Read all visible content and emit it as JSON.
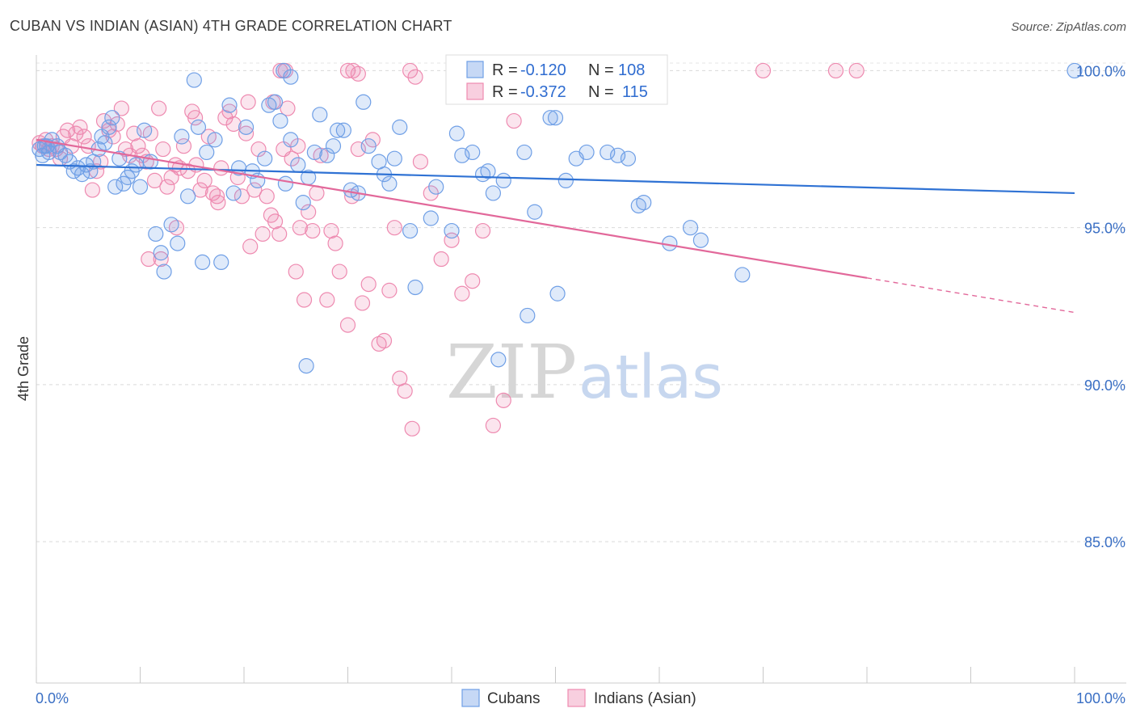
{
  "title": "CUBAN VS INDIAN (ASIAN) 4TH GRADE CORRELATION CHART",
  "source": "Source: ZipAtlas.com",
  "watermark": {
    "part1": "ZIP",
    "part2": "atlas"
  },
  "colors": {
    "blue": "#6f9fe6",
    "blue_line": "#2f72d4",
    "pink": "#ee8ab0",
    "pink_line": "#e2689a",
    "grid": "#d8d8d8",
    "axis_text": "#3a6fc4"
  },
  "legend": {
    "rows": [
      {
        "r_label": "R =",
        "r_value": "-0.120",
        "n_label": "N =",
        "n_value": "108"
      },
      {
        "r_label": "R =",
        "r_value": "-0.372",
        "n_label": "N =",
        "n_value": "115"
      }
    ]
  },
  "chart_data": {
    "type": "scatter",
    "title": "CUBAN VS INDIAN (ASIAN) 4TH GRADE CORRELATION CHART",
    "xlabel": "",
    "ylabel": "4th Grade",
    "xlim": [
      0,
      100
    ],
    "ylim": [
      80.5,
      100.5
    ],
    "x_tick_labels": [
      "0.0%",
      "100.0%"
    ],
    "y_ticks": [
      85,
      90,
      95,
      100
    ],
    "y_tick_labels": [
      "85.0%",
      "90.0%",
      "95.0%",
      "100.0%"
    ],
    "legend_position": "bottom",
    "series": [
      {
        "name": "Cubans",
        "color": "#6f9fe6",
        "trend": {
          "x_start": 0,
          "y_start": 97.0,
          "x_end": 100,
          "y_end": 96.1,
          "dashed_from": null
        },
        "points": [
          [
            0.3,
            97.5
          ],
          [
            0.6,
            97.3
          ],
          [
            0.8,
            97.6
          ],
          [
            1.0,
            97.6
          ],
          [
            1.2,
            97.4
          ],
          [
            1.5,
            97.8
          ],
          [
            2.0,
            97.6
          ],
          [
            2.3,
            97.4
          ],
          [
            2.8,
            97.3
          ],
          [
            3.2,
            97.1
          ],
          [
            3.6,
            96.8
          ],
          [
            4.0,
            96.9
          ],
          [
            4.4,
            96.7
          ],
          [
            4.8,
            97.0
          ],
          [
            5.2,
            96.8
          ],
          [
            5.5,
            97.1
          ],
          [
            6.0,
            97.5
          ],
          [
            6.3,
            97.9
          ],
          [
            6.6,
            97.7
          ],
          [
            7.0,
            98.2
          ],
          [
            7.3,
            98.5
          ],
          [
            7.6,
            96.3
          ],
          [
            8.0,
            97.2
          ],
          [
            8.4,
            96.4
          ],
          [
            8.8,
            96.6
          ],
          [
            9.2,
            96.8
          ],
          [
            9.6,
            97.0
          ],
          [
            10.0,
            96.3
          ],
          [
            10.4,
            98.1
          ],
          [
            11.0,
            97.1
          ],
          [
            11.5,
            94.8
          ],
          [
            12.0,
            94.2
          ],
          [
            12.3,
            93.6
          ],
          [
            13.0,
            95.1
          ],
          [
            13.6,
            94.5
          ],
          [
            14.0,
            97.9
          ],
          [
            14.6,
            96.0
          ],
          [
            15.2,
            99.7
          ],
          [
            15.6,
            98.2
          ],
          [
            16.0,
            93.9
          ],
          [
            16.4,
            97.4
          ],
          [
            17.2,
            97.8
          ],
          [
            17.8,
            93.9
          ],
          [
            18.6,
            98.9
          ],
          [
            19.0,
            96.1
          ],
          [
            19.5,
            96.9
          ],
          [
            20.2,
            98.2
          ],
          [
            20.8,
            96.8
          ],
          [
            21.3,
            96.5
          ],
          [
            22.0,
            97.2
          ],
          [
            22.4,
            98.9
          ],
          [
            23.0,
            99.0
          ],
          [
            23.5,
            98.4
          ],
          [
            24.0,
            96.4
          ],
          [
            24.5,
            97.8
          ],
          [
            25.2,
            97.0
          ],
          [
            25.7,
            95.8
          ],
          [
            26.2,
            96.6
          ],
          [
            26.8,
            97.4
          ],
          [
            27.3,
            98.6
          ],
          [
            28.0,
            97.3
          ],
          [
            28.6,
            97.6
          ],
          [
            29.0,
            98.1
          ],
          [
            29.6,
            98.1
          ],
          [
            30.3,
            96.2
          ],
          [
            31.0,
            96.1
          ],
          [
            32.0,
            97.6
          ],
          [
            33.0,
            97.1
          ],
          [
            33.5,
            96.7
          ],
          [
            34.0,
            96.4
          ],
          [
            34.5,
            97.2
          ],
          [
            35.0,
            98.2
          ],
          [
            36.0,
            94.9
          ],
          [
            36.5,
            93.1
          ],
          [
            38.0,
            95.3
          ],
          [
            38.5,
            96.3
          ],
          [
            40.0,
            94.9
          ],
          [
            40.5,
            98.0
          ],
          [
            41.0,
            97.3
          ],
          [
            42.0,
            97.4
          ],
          [
            43.0,
            96.7
          ],
          [
            43.5,
            96.8
          ],
          [
            44.0,
            96.1
          ],
          [
            45.0,
            96.5
          ],
          [
            47.0,
            97.4
          ],
          [
            48.0,
            95.5
          ],
          [
            49.5,
            98.5
          ],
          [
            50.0,
            98.5
          ],
          [
            51.0,
            96.5
          ],
          [
            52.0,
            97.2
          ],
          [
            53.0,
            97.4
          ],
          [
            55.0,
            97.4
          ],
          [
            56.0,
            97.3
          ],
          [
            57.0,
            97.2
          ],
          [
            58.0,
            95.7
          ],
          [
            58.5,
            95.8
          ],
          [
            61.0,
            94.5
          ],
          [
            63.0,
            95.0
          ],
          [
            64.0,
            94.6
          ],
          [
            68.0,
            93.5
          ],
          [
            100.0,
            100.0
          ],
          [
            23.8,
            100.0
          ],
          [
            24.5,
            99.8
          ],
          [
            31.5,
            99.0
          ],
          [
            26.0,
            90.6
          ],
          [
            44.5,
            90.8
          ],
          [
            47.3,
            92.2
          ],
          [
            50.2,
            92.9
          ]
        ]
      },
      {
        "name": "Indians (Asian)",
        "color": "#ee8ab0",
        "trend": {
          "x_start": 0,
          "y_start": 97.8,
          "x_end": 100,
          "y_end": 92.3,
          "dashed_from": 80
        },
        "points": [
          [
            0.3,
            97.7
          ],
          [
            0.6,
            97.6
          ],
          [
            0.9,
            97.8
          ],
          [
            1.2,
            97.5
          ],
          [
            1.5,
            97.6
          ],
          [
            1.9,
            97.5
          ],
          [
            2.3,
            97.2
          ],
          [
            2.6,
            97.9
          ],
          [
            3.0,
            98.1
          ],
          [
            3.4,
            97.6
          ],
          [
            3.8,
            98.0
          ],
          [
            4.2,
            98.2
          ],
          [
            4.6,
            97.9
          ],
          [
            5.0,
            97.6
          ],
          [
            5.4,
            96.2
          ],
          [
            5.8,
            96.8
          ],
          [
            6.2,
            97.1
          ],
          [
            6.5,
            98.4
          ],
          [
            7.0,
            98.1
          ],
          [
            7.4,
            97.9
          ],
          [
            7.8,
            98.3
          ],
          [
            8.2,
            98.8
          ],
          [
            8.6,
            97.5
          ],
          [
            9.0,
            97.3
          ],
          [
            9.4,
            98.0
          ],
          [
            9.8,
            97.6
          ],
          [
            10.2,
            97.3
          ],
          [
            10.6,
            97.1
          ],
          [
            11.0,
            98.0
          ],
          [
            11.4,
            96.5
          ],
          [
            11.8,
            98.8
          ],
          [
            12.2,
            97.5
          ],
          [
            12.6,
            96.3
          ],
          [
            13.0,
            96.6
          ],
          [
            13.4,
            97.0
          ],
          [
            13.8,
            96.9
          ],
          [
            14.2,
            97.6
          ],
          [
            14.6,
            96.8
          ],
          [
            15.0,
            98.7
          ],
          [
            15.4,
            97.0
          ],
          [
            15.8,
            96.2
          ],
          [
            16.2,
            96.5
          ],
          [
            16.6,
            97.9
          ],
          [
            17.0,
            96.1
          ],
          [
            17.4,
            96.0
          ],
          [
            17.8,
            96.9
          ],
          [
            18.2,
            98.5
          ],
          [
            18.6,
            98.7
          ],
          [
            19.0,
            98.3
          ],
          [
            19.4,
            96.6
          ],
          [
            19.8,
            96.0
          ],
          [
            20.2,
            98.0
          ],
          [
            20.6,
            94.4
          ],
          [
            21.0,
            96.2
          ],
          [
            21.4,
            97.5
          ],
          [
            21.8,
            94.8
          ],
          [
            22.2,
            96.0
          ],
          [
            22.6,
            95.4
          ],
          [
            23.0,
            95.2
          ],
          [
            23.4,
            94.8
          ],
          [
            23.8,
            97.5
          ],
          [
            24.2,
            98.8
          ],
          [
            24.6,
            97.2
          ],
          [
            25.0,
            93.6
          ],
          [
            25.4,
            95.0
          ],
          [
            25.8,
            92.7
          ],
          [
            26.2,
            95.5
          ],
          [
            26.6,
            94.9
          ],
          [
            27.0,
            96.1
          ],
          [
            27.4,
            97.3
          ],
          [
            28.0,
            92.7
          ],
          [
            28.4,
            94.9
          ],
          [
            28.8,
            94.5
          ],
          [
            29.2,
            93.6
          ],
          [
            30.0,
            91.9
          ],
          [
            30.4,
            96.0
          ],
          [
            31.0,
            97.5
          ],
          [
            31.4,
            92.6
          ],
          [
            32.0,
            93.2
          ],
          [
            32.4,
            97.8
          ],
          [
            33.0,
            91.3
          ],
          [
            33.5,
            91.4
          ],
          [
            34.0,
            93.0
          ],
          [
            34.5,
            95.0
          ],
          [
            35.0,
            90.2
          ],
          [
            35.5,
            89.8
          ],
          [
            36.2,
            88.6
          ],
          [
            37.0,
            97.1
          ],
          [
            38.0,
            96.1
          ],
          [
            39.0,
            94.0
          ],
          [
            40.0,
            94.6
          ],
          [
            41.0,
            92.9
          ],
          [
            42.0,
            93.3
          ],
          [
            43.0,
            94.9
          ],
          [
            44.0,
            88.7
          ],
          [
            45.0,
            89.5
          ],
          [
            46.0,
            98.4
          ],
          [
            23.5,
            100.0
          ],
          [
            24.0,
            100.0
          ],
          [
            30.0,
            100.0
          ],
          [
            30.5,
            100.0
          ],
          [
            31.0,
            99.9
          ],
          [
            36.0,
            100.0
          ],
          [
            36.5,
            99.8
          ],
          [
            70.0,
            100.0
          ],
          [
            77.0,
            100.0
          ],
          [
            79.0,
            100.0
          ],
          [
            20.4,
            99.0
          ],
          [
            22.8,
            99.0
          ],
          [
            15.3,
            98.5
          ],
          [
            10.8,
            94.0
          ],
          [
            12.0,
            94.0
          ],
          [
            17.5,
            95.8
          ],
          [
            13.5,
            95.0
          ],
          [
            25.2,
            97.6
          ]
        ]
      }
    ]
  },
  "bottom_legend": [
    {
      "label": "Cubans"
    },
    {
      "label": "Indians (Asian)"
    }
  ]
}
